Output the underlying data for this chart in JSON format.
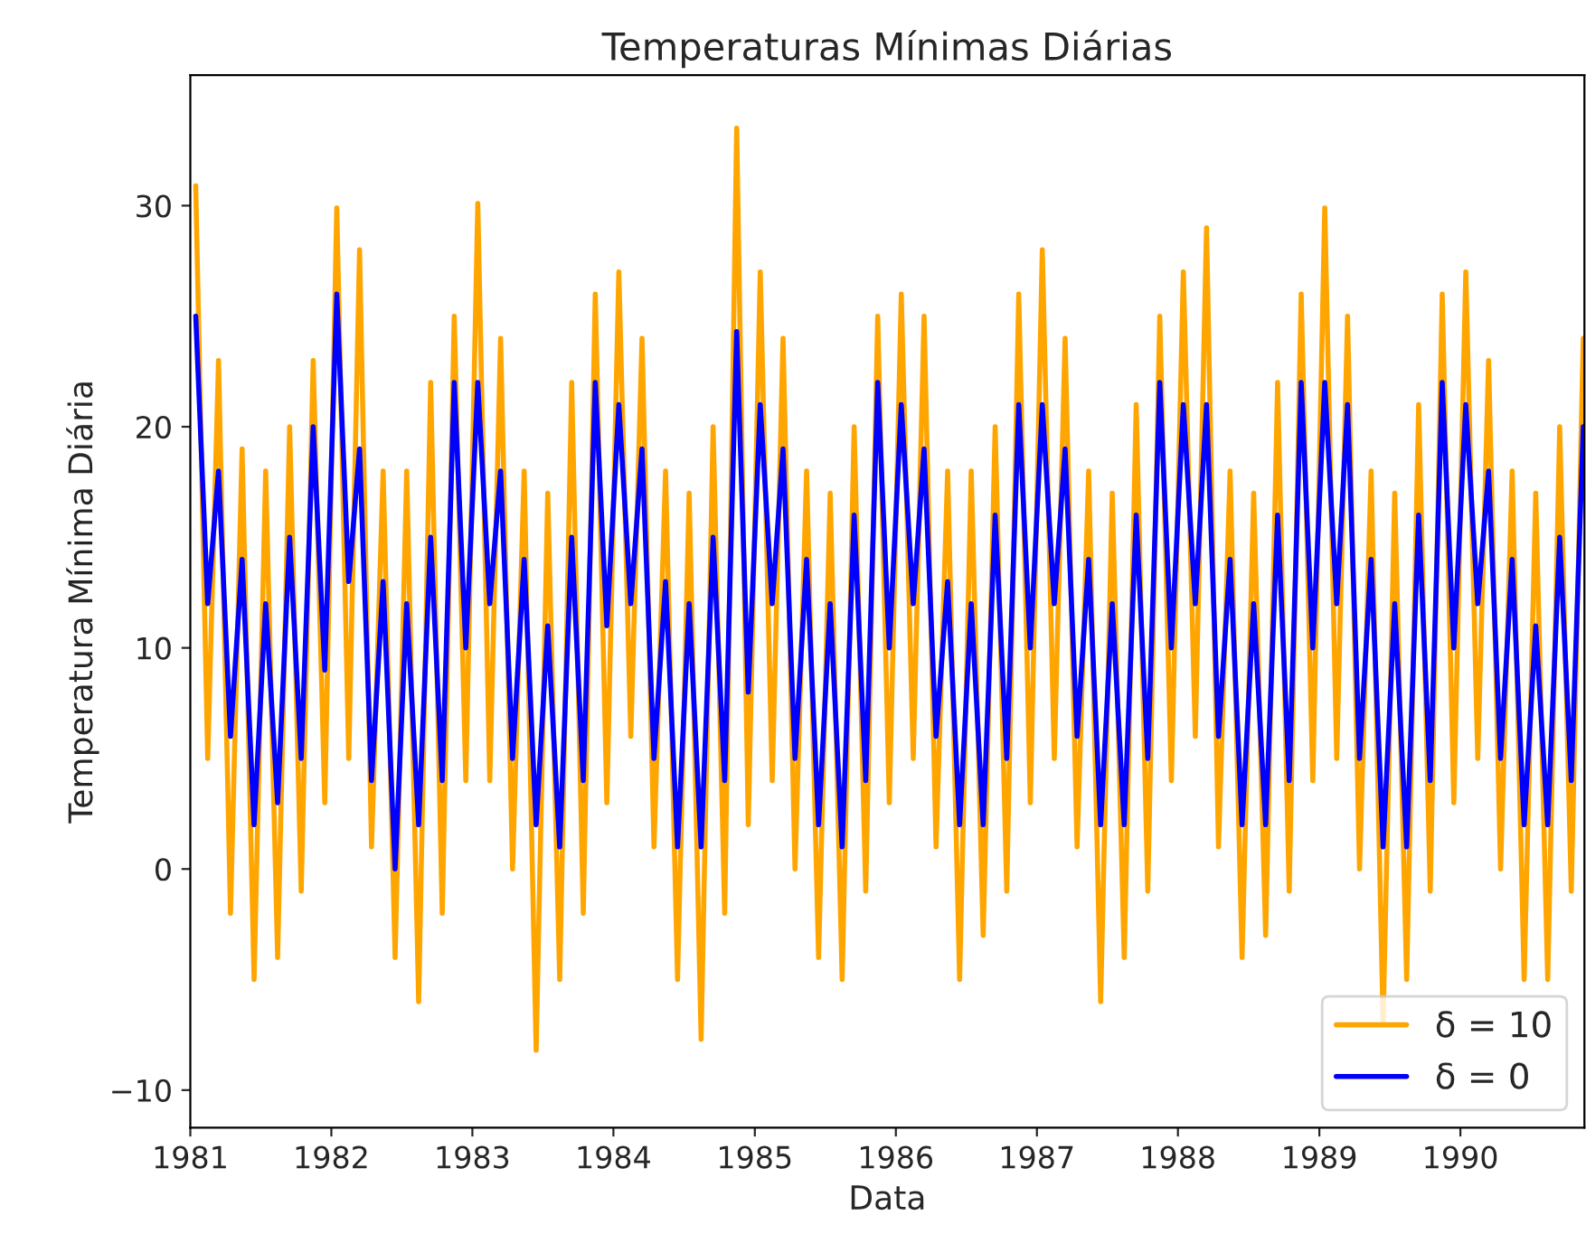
{
  "chart_data": {
    "type": "line",
    "title": "Temperaturas Mínimas Diárias",
    "xlabel": "Data",
    "ylabel": "Temperatura Mínima Diária",
    "x": [
      "1981-01-15",
      "1981-02-15",
      "1981-03-15",
      "1981-04-15",
      "1981-05-15",
      "1981-06-15",
      "1981-07-15",
      "1981-08-15",
      "1981-09-15",
      "1981-10-15",
      "1981-11-15",
      "1981-12-15",
      "1982-01-15",
      "1982-02-15",
      "1982-03-15",
      "1982-04-15",
      "1982-05-15",
      "1982-06-15",
      "1982-07-15",
      "1982-08-15",
      "1982-09-15",
      "1982-10-15",
      "1982-11-15",
      "1982-12-15",
      "1983-01-15",
      "1983-02-15",
      "1983-03-15",
      "1983-04-15",
      "1983-05-15",
      "1983-06-15",
      "1983-07-15",
      "1983-08-15",
      "1983-09-15",
      "1983-10-15",
      "1983-11-15",
      "1983-12-15",
      "1984-01-15",
      "1984-02-15",
      "1984-03-15",
      "1984-04-15",
      "1984-05-15",
      "1984-06-15",
      "1984-07-15",
      "1984-08-15",
      "1984-09-15",
      "1984-10-15",
      "1984-11-15",
      "1984-12-15",
      "1985-01-15",
      "1985-02-15",
      "1985-03-15",
      "1985-04-15",
      "1985-05-15",
      "1985-06-15",
      "1985-07-15",
      "1985-08-15",
      "1985-09-15",
      "1985-10-15",
      "1985-11-15",
      "1985-12-15",
      "1986-01-15",
      "1986-02-15",
      "1986-03-15",
      "1986-04-15",
      "1986-05-15",
      "1986-06-15",
      "1986-07-15",
      "1986-08-15",
      "1986-09-15",
      "1986-10-15",
      "1986-11-15",
      "1986-12-15",
      "1987-01-15",
      "1987-02-15",
      "1987-03-15",
      "1987-04-15",
      "1987-05-15",
      "1987-06-15",
      "1987-07-15",
      "1987-08-15",
      "1987-09-15",
      "1987-10-15",
      "1987-11-15",
      "1987-12-15",
      "1988-01-15",
      "1988-02-15",
      "1988-03-15",
      "1988-04-15",
      "1988-05-15",
      "1988-06-15",
      "1988-07-15",
      "1988-08-15",
      "1988-09-15",
      "1988-10-15",
      "1988-11-15",
      "1988-12-15",
      "1989-01-15",
      "1989-02-15",
      "1989-03-15",
      "1989-04-15",
      "1989-05-15",
      "1989-06-15",
      "1989-07-15",
      "1989-08-15",
      "1989-09-15",
      "1989-10-15",
      "1989-11-15",
      "1989-12-15",
      "1990-01-15",
      "1990-02-15",
      "1990-03-15",
      "1990-04-15",
      "1990-05-15",
      "1990-06-15",
      "1990-07-15",
      "1990-08-15",
      "1990-09-15",
      "1990-10-15",
      "1990-11-15"
    ],
    "series": [
      {
        "name": "δ = 10",
        "color": "#ffa500",
        "values": [
          30.9,
          5,
          23,
          -2,
          19,
          -5,
          18,
          -4,
          20,
          -1,
          23,
          3,
          29.9,
          5,
          28,
          1,
          18,
          -4,
          18,
          -6,
          22,
          -2,
          25,
          4,
          30.1,
          4,
          24,
          0,
          18,
          -8.2,
          17,
          -5,
          22,
          -2,
          26,
          3,
          27,
          6,
          24,
          1,
          18,
          -5,
          17,
          -7.7,
          20,
          -2,
          33.5,
          2,
          27,
          4,
          24,
          0,
          18,
          -4,
          17,
          -5,
          20,
          -1,
          25,
          3,
          26,
          5,
          25,
          1,
          18,
          -5,
          18,
          -3,
          20,
          -1,
          26,
          3,
          28,
          5,
          24,
          1,
          18,
          -6,
          17,
          -4,
          21,
          -1,
          25,
          4,
          27,
          6,
          29,
          1,
          18,
          -4,
          17,
          -3,
          22,
          -1,
          26,
          4,
          29.9,
          5,
          25,
          0,
          18,
          -7,
          17,
          -5,
          21,
          -1,
          26,
          3,
          27,
          5,
          23,
          0,
          18,
          -5,
          17,
          -5,
          20,
          -1,
          24
        ]
      },
      {
        "name": "δ = 0",
        "color": "#0000ff",
        "values": [
          25,
          12,
          18,
          6,
          14,
          2,
          12,
          3,
          15,
          5,
          20,
          9,
          26,
          13,
          19,
          4,
          13,
          0,
          12,
          2,
          15,
          4,
          22,
          10,
          22,
          12,
          18,
          5,
          14,
          2,
          11,
          1,
          15,
          4,
          22,
          11,
          21,
          12,
          19,
          5,
          13,
          1,
          12,
          1,
          15,
          4,
          24.3,
          8,
          21,
          12,
          19,
          5,
          14,
          2,
          12,
          1,
          16,
          4,
          22,
          10,
          21,
          12,
          19,
          6,
          13,
          2,
          12,
          2,
          16,
          5,
          21,
          10,
          21,
          12,
          19,
          6,
          14,
          2,
          12,
          2,
          16,
          5,
          22,
          10,
          21,
          12,
          21,
          6,
          14,
          2,
          12,
          2,
          16,
          4,
          22,
          10,
          22,
          12,
          21,
          5,
          14,
          1,
          12,
          1,
          16,
          4,
          22,
          10,
          21,
          12,
          18,
          5,
          14,
          2,
          11,
          2,
          15,
          4,
          20
        ]
      }
    ],
    "xlim": [
      "1981-01-01",
      "1990-11-18"
    ],
    "xticks": [
      {
        "value": "1981-01-01",
        "label": "1981"
      },
      {
        "value": "1982-01-01",
        "label": "1982"
      },
      {
        "value": "1983-01-01",
        "label": "1983"
      },
      {
        "value": "1984-01-01",
        "label": "1984"
      },
      {
        "value": "1985-01-01",
        "label": "1985"
      },
      {
        "value": "1986-01-01",
        "label": "1986"
      },
      {
        "value": "1987-01-01",
        "label": "1987"
      },
      {
        "value": "1988-01-01",
        "label": "1988"
      },
      {
        "value": "1989-01-01",
        "label": "1989"
      },
      {
        "value": "1990-01-01",
        "label": "1990"
      }
    ],
    "ylim": [
      -11.7,
      35.9
    ],
    "yticks": [
      -10,
      0,
      10,
      20,
      30
    ],
    "grid": false,
    "legend": "bottom right",
    "marker": "none",
    "line_style": "solid"
  }
}
